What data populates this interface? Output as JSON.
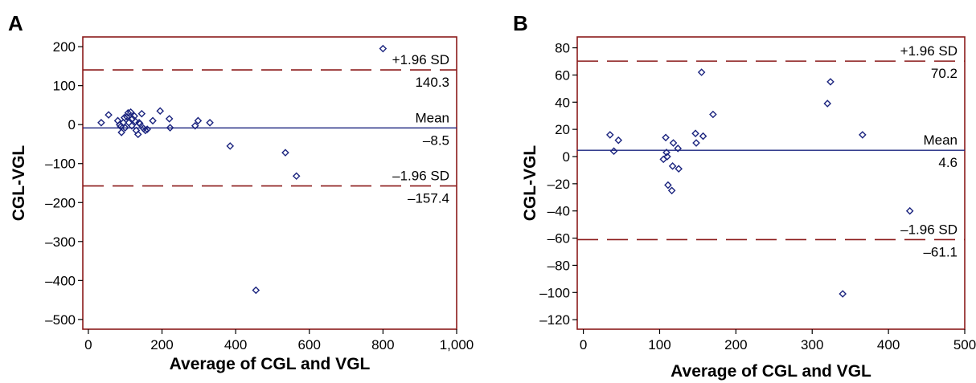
{
  "colors": {
    "frame": "#8b1a1a",
    "limit_line": "#8b1a1a",
    "mean_line": "#1a237e",
    "points": "#1a237e"
  },
  "chart_data": [
    {
      "panel": "A",
      "type": "scatter",
      "xlabel": "Average of CGL and VGL",
      "ylabel": "CGL-VGL",
      "xlim": [
        -15,
        1000
      ],
      "ylim": [
        -525,
        225
      ],
      "x_ticks": [
        0,
        200,
        400,
        600,
        800,
        1000
      ],
      "x_tick_labels": [
        "0",
        "200",
        "400",
        "600",
        "800",
        "1,000"
      ],
      "y_ticks": [
        200,
        100,
        0,
        -100,
        -200,
        -300,
        -400,
        -500
      ],
      "y_tick_labels": [
        "200",
        "100",
        "0",
        "–100",
        "–200",
        "–300",
        "–400",
        "–500"
      ],
      "reference_lines": [
        {
          "kind": "upper",
          "value": 140.3,
          "label": "+1.96 SD",
          "value_label": "140.3"
        },
        {
          "kind": "mean",
          "value": -8.5,
          "label": "Mean",
          "value_label": "–8.5"
        },
        {
          "kind": "lower",
          "value": -157.4,
          "label": "–1.96 SD",
          "value_label": "–157.4"
        }
      ],
      "points": [
        [
          35,
          5
        ],
        [
          55,
          25
        ],
        [
          80,
          10
        ],
        [
          85,
          0
        ],
        [
          88,
          -5
        ],
        [
          90,
          -20
        ],
        [
          95,
          5
        ],
        [
          98,
          18
        ],
        [
          100,
          -8
        ],
        [
          105,
          20
        ],
        [
          108,
          30
        ],
        [
          110,
          5
        ],
        [
          115,
          32
        ],
        [
          118,
          -3
        ],
        [
          120,
          15
        ],
        [
          125,
          22
        ],
        [
          128,
          8
        ],
        [
          130,
          -15
        ],
        [
          135,
          -25
        ],
        [
          138,
          5
        ],
        [
          140,
          2
        ],
        [
          145,
          28
        ],
        [
          150,
          -10
        ],
        [
          155,
          -15
        ],
        [
          160,
          -12
        ],
        [
          175,
          10
        ],
        [
          195,
          35
        ],
        [
          220,
          15
        ],
        [
          222,
          -8
        ],
        [
          290,
          -3
        ],
        [
          298,
          10
        ],
        [
          330,
          5
        ],
        [
          385,
          -55
        ],
        [
          455,
          -425
        ],
        [
          535,
          -72
        ],
        [
          565,
          -132
        ],
        [
          800,
          195
        ]
      ]
    },
    {
      "panel": "B",
      "type": "scatter",
      "xlabel": "Average of CGL and VGL",
      "ylabel": "CGL-VGL",
      "xlim": [
        -8,
        500
      ],
      "ylim": [
        -127,
        88
      ],
      "x_ticks": [
        0,
        100,
        200,
        300,
        400,
        500
      ],
      "x_tick_labels": [
        "0",
        "100",
        "200",
        "300",
        "400",
        "500"
      ],
      "y_ticks": [
        80,
        60,
        40,
        20,
        0,
        -20,
        -40,
        -60,
        -80,
        -100,
        -120
      ],
      "y_tick_labels": [
        "80",
        "60",
        "40",
        "20",
        "0",
        "–20",
        "–40",
        "–60",
        "–80",
        "–100",
        "–120"
      ],
      "reference_lines": [
        {
          "kind": "upper",
          "value": 70.2,
          "label": "+1.96 SD",
          "value_label": "70.2"
        },
        {
          "kind": "mean",
          "value": 4.6,
          "label": "Mean",
          "value_label": "4.6"
        },
        {
          "kind": "lower",
          "value": -61.1,
          "label": "–1.96 SD",
          "value_label": "–61.1"
        }
      ],
      "points": [
        [
          35,
          16
        ],
        [
          40,
          4
        ],
        [
          46,
          12
        ],
        [
          105,
          -2
        ],
        [
          108,
          14
        ],
        [
          109,
          3
        ],
        [
          110,
          0
        ],
        [
          111,
          -21
        ],
        [
          116,
          -25
        ],
        [
          117,
          -7
        ],
        [
          118,
          10
        ],
        [
          124,
          6
        ],
        [
          125,
          -9
        ],
        [
          147,
          17
        ],
        [
          148,
          10
        ],
        [
          155,
          62
        ],
        [
          157,
          15
        ],
        [
          170,
          31
        ],
        [
          320,
          39
        ],
        [
          324,
          55
        ],
        [
          340,
          -101
        ],
        [
          366,
          16
        ],
        [
          428,
          -40
        ]
      ]
    }
  ]
}
